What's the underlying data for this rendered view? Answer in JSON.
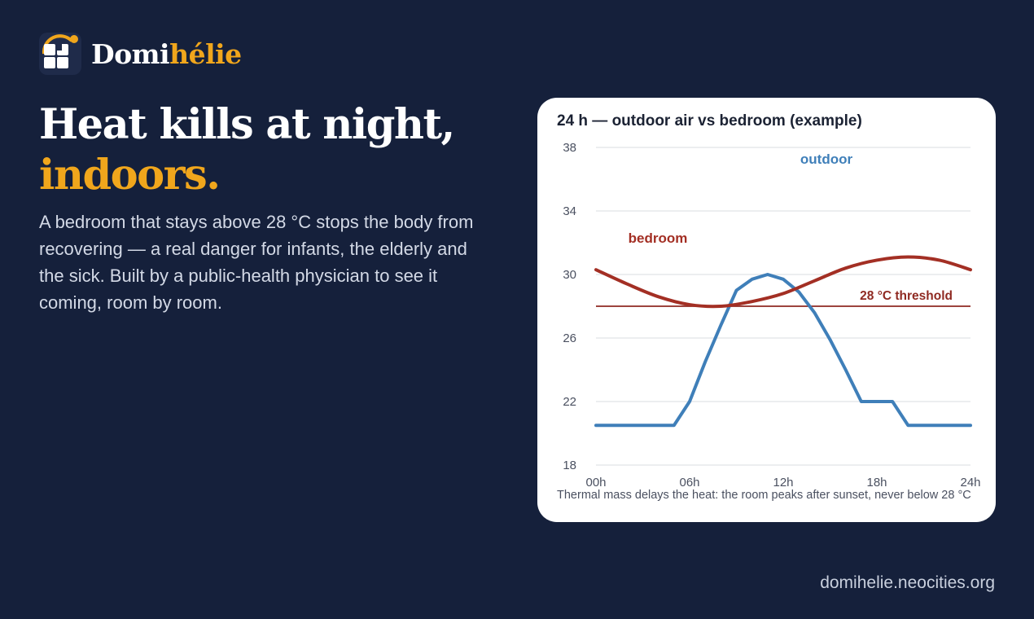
{
  "brand": {
    "prefix": "Domi",
    "accent": "hélie"
  },
  "headline": {
    "line1": "Heat kills at night,",
    "line2": "indoors."
  },
  "lede": "A bedroom that stays above 28 °C stops the body from recovering — a real danger for infants, the elderly and the sick. Built by a public-health physician to see it coming, room by room.",
  "footer_url": "domihelie.neocities.org",
  "colors": {
    "background": "#15203b",
    "accent": "#f0a61c",
    "outdoor": "#3f7fb9",
    "bedroom": "#a32f24",
    "threshold": "#8f2a22"
  },
  "chart_data": {
    "type": "line",
    "title": "24 h — outdoor air vs bedroom (example)",
    "caption": "Thermal mass delays the heat: the room peaks after sunset, never below 28 °C",
    "x_tick_labels": [
      "00h",
      "06h",
      "12h",
      "18h",
      "24h"
    ],
    "x_ticks": [
      0,
      6,
      12,
      18,
      24
    ],
    "y_ticks": [
      18,
      22,
      26,
      30,
      34,
      38
    ],
    "xlim": [
      0,
      24
    ],
    "ylim": [
      18,
      38
    ],
    "grid": true,
    "series": [
      {
        "name": "outdoor",
        "color": "#3f7fb9",
        "x": [
          0,
          1,
          2,
          3,
          4,
          5,
          6,
          7,
          8,
          9,
          10,
          11,
          12,
          13,
          14,
          15,
          16,
          17,
          18,
          19,
          20,
          21,
          22,
          23,
          24
        ],
        "y": [
          20.5,
          20.5,
          20.5,
          20.5,
          20.5,
          20.5,
          22.0,
          24.5,
          26.8,
          29.0,
          29.7,
          30.0,
          29.7,
          28.9,
          27.6,
          25.9,
          24.0,
          22.0,
          22.0,
          22.0,
          20.5,
          20.5,
          20.5,
          20.5,
          20.5
        ]
      },
      {
        "name": "bedroom",
        "color": "#a32f24",
        "x": [
          0,
          2,
          4,
          6,
          8,
          10,
          12,
          14,
          16,
          18,
          20,
          22,
          24
        ],
        "y": [
          30.3,
          29.4,
          28.6,
          28.1,
          28.0,
          28.3,
          28.8,
          29.6,
          30.4,
          30.9,
          31.1,
          30.9,
          30.3
        ]
      }
    ],
    "threshold": {
      "label": "28 °C threshold",
      "value": 28,
      "color": "#8f2a22"
    }
  }
}
